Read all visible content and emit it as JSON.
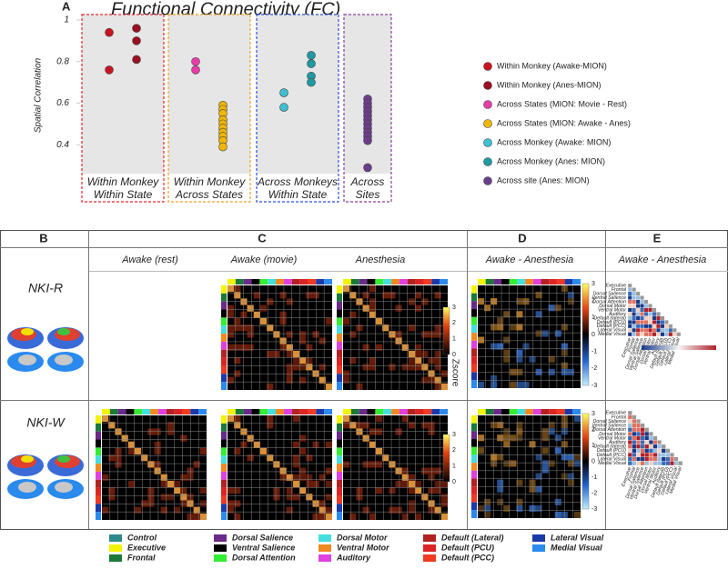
{
  "chart_data": {
    "type": "strip",
    "panel": "A",
    "title": "Functional Connectivity (FC)",
    "y_label": "Spatial Correlation",
    "ylim": [
      0.27,
      1.0
    ],
    "yticks": [
      0.4,
      0.6,
      0.8,
      1
    ],
    "categories": [
      [
        "Within Monkey",
        "Within State"
      ],
      [
        "Within Monkey",
        "Across States"
      ],
      [
        "Across Monkeys",
        "Within State"
      ],
      [
        "Across",
        "Sites"
      ]
    ],
    "category_colors": [
      "#e8262e",
      "#f0a020",
      "#2a4fd8",
      "#8a3d9a"
    ],
    "series": [
      {
        "name": "Within Monkey (Awake-MION)",
        "color": "#c8141e",
        "values": [
          [
            0.94,
            0.76
          ],
          null,
          null,
          null
        ]
      },
      {
        "name": "Within Monkey (Anes-MION)",
        "color": "#9a1020",
        "values": [
          [
            0.96,
            0.9,
            0.81
          ],
          null,
          null,
          null
        ]
      },
      {
        "name": "Across States (MION: Movie - Rest)",
        "color": "#e83ca8",
        "values": [
          null,
          [
            0.8,
            0.76
          ],
          null,
          null
        ]
      },
      {
        "name": "Across States (MION: Awake - Anes)",
        "color": "#f2b600",
        "values": [
          null,
          [
            0.59,
            0.57,
            0.55,
            0.52,
            0.5,
            0.48,
            0.46,
            0.44,
            0.42,
            0.39
          ],
          null,
          null
        ]
      },
      {
        "name": "Across Monkey (Awake: MION)",
        "color": "#3cc0d2",
        "values": [
          null,
          null,
          [
            0.65,
            0.58
          ],
          null
        ]
      },
      {
        "name": "Across Monkey (Anes: MION)",
        "color": "#1f9aa2",
        "values": [
          null,
          null,
          [
            0.83,
            0.79,
            0.73,
            0.7
          ],
          null
        ]
      },
      {
        "name": "Across site (Anes: MION)",
        "color": "#6a3d8c",
        "values": [
          null,
          null,
          null,
          [
            0.62,
            0.6,
            0.58,
            0.56,
            0.54,
            0.52,
            0.5,
            0.48,
            0.46,
            0.44,
            0.42,
            0.29
          ]
        ]
      }
    ]
  },
  "figure": {
    "panels": [
      "B",
      "C",
      "D",
      "E"
    ],
    "column_titles": [
      "Awake (rest)",
      "Awake (movie)",
      "Anesthesia",
      "Awake - Anesthesia",
      "Awake - Anesthesia"
    ],
    "rows": [
      "NKI-R",
      "NKI-W"
    ],
    "colorbar_label": "Zscore",
    "colorbar_ticks_c": [
      "3",
      "2",
      "1",
      "0"
    ],
    "colorbar_ticks_d": [
      "3",
      "2",
      "1",
      "0",
      "-1",
      "-2",
      "-3"
    ],
    "e_labels": [
      "Executive",
      "Frontal",
      "Dorsal Salience",
      "Ventral Salience",
      "Dorsal Attention",
      "Dorsal Motor",
      "Ventral Motor",
      "Auditory",
      "Default (lateral)",
      "Default (PCU)",
      "Default (PCC)",
      "Lateral Visual",
      "Medial Visual"
    ],
    "networks": [
      {
        "name": "Control",
        "color": "#2e8a8a"
      },
      {
        "name": "Executive",
        "color": "#f4f400"
      },
      {
        "name": "Frontal",
        "color": "#1a7a3a"
      },
      {
        "name": "Dorsal Salience",
        "color": "#6a2a8a"
      },
      {
        "name": "Ventral Salience",
        "color": "#000000"
      },
      {
        "name": "Dorsal Attention",
        "color": "#33ee33"
      },
      {
        "name": "Dorsal Motor",
        "color": "#44dede"
      },
      {
        "name": "Ventral Motor",
        "color": "#f08a20"
      },
      {
        "name": "Auditory",
        "color": "#e040e0"
      },
      {
        "name": "Default (Lateral)",
        "color": "#b22222"
      },
      {
        "name": "Default (PCU)",
        "color": "#dd2424"
      },
      {
        "name": "Default (PCC)",
        "color": "#f03a22"
      },
      {
        "name": "Lateral Visual",
        "color": "#1a3aaa"
      },
      {
        "name": "Medial Visual",
        "color": "#2a8aee"
      }
    ]
  }
}
